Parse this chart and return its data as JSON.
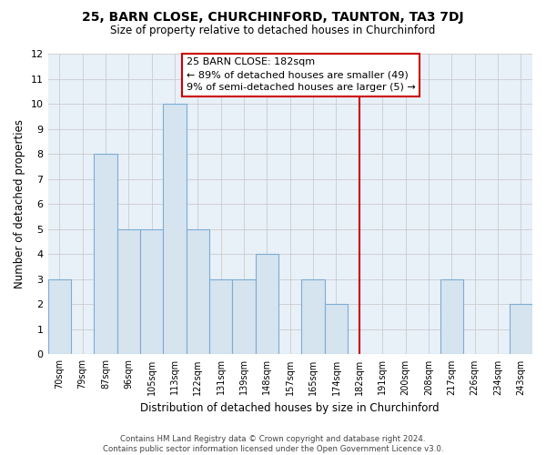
{
  "title": "25, BARN CLOSE, CHURCHINFORD, TAUNTON, TA3 7DJ",
  "subtitle": "Size of property relative to detached houses in Churchinford",
  "xlabel": "Distribution of detached houses by size in Churchinford",
  "ylabel": "Number of detached properties",
  "categories": [
    "70sqm",
    "79sqm",
    "87sqm",
    "96sqm",
    "105sqm",
    "113sqm",
    "122sqm",
    "131sqm",
    "139sqm",
    "148sqm",
    "157sqm",
    "165sqm",
    "174sqm",
    "182sqm",
    "191sqm",
    "200sqm",
    "208sqm",
    "217sqm",
    "226sqm",
    "234sqm",
    "243sqm"
  ],
  "values": [
    3,
    0,
    8,
    5,
    5,
    10,
    5,
    3,
    3,
    4,
    0,
    3,
    2,
    0,
    0,
    0,
    0,
    3,
    0,
    0,
    2
  ],
  "bar_color": "#d6e4f0",
  "bar_edge_color": "#7badd4",
  "marker_index": 13,
  "marker_color": "#cc0000",
  "ylim": [
    0,
    12
  ],
  "yticks": [
    0,
    1,
    2,
    3,
    4,
    5,
    6,
    7,
    8,
    9,
    10,
    11,
    12
  ],
  "grid_color": "#cccccc",
  "background_color": "#ffffff",
  "annotation_title": "25 BARN CLOSE: 182sqm",
  "annotation_line1": "← 89% of detached houses are smaller (49)",
  "annotation_line2": "9% of semi-detached houses are larger (5) →",
  "footer_line1": "Contains HM Land Registry data © Crown copyright and database right 2024.",
  "footer_line2": "Contains public sector information licensed under the Open Government Licence v3.0."
}
